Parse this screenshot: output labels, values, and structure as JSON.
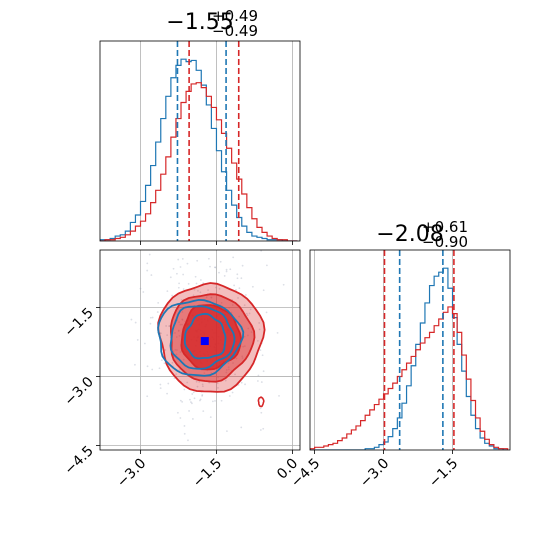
{
  "chart_data": {
    "type": "corner",
    "parameters": [
      {
        "title": {
          "main": "−1.55",
          "sup": "+0.49",
          "sub": "−0.49"
        },
        "range": [
          -3.8,
          0.15
        ],
        "ticks": [
          -3.0,
          -1.5,
          0.0
        ],
        "tick_labels": [
          "−3.0",
          "−1.5",
          "0.0"
        ]
      },
      {
        "title": {
          "main": "−2.08",
          "sup": "+0.61",
          "sub": "−0.90"
        },
        "range": [
          -4.6,
          -0.25
        ],
        "ticks": [
          -4.5,
          -3.0,
          -1.5
        ],
        "tick_labels": [
          "−4.5",
          "−3.0",
          "−1.5"
        ]
      }
    ],
    "series": [
      {
        "color": "#1f77b4",
        "hist_x1": {
          "bins": [
            -3.8,
            -3.7,
            -3.6,
            -3.5,
            -3.4,
            -3.3,
            -3.2,
            -3.1,
            -3.0,
            -2.9,
            -2.8,
            -2.7,
            -2.6,
            -2.5,
            -2.4,
            -2.3,
            -2.2,
            -2.1,
            -2.0,
            -1.9,
            -1.8,
            -1.7,
            -1.6,
            -1.5,
            -1.4,
            -1.3,
            -1.2,
            -1.1,
            -1.0,
            -0.9,
            -0.8,
            -0.7,
            -0.6,
            -0.5,
            -0.4,
            -0.3,
            -0.2,
            -0.1,
            0.0,
            0.1
          ],
          "counts": [
            1,
            1,
            2,
            4,
            5,
            8,
            15,
            21,
            32,
            45,
            61,
            80,
            99,
            117,
            132,
            142,
            147,
            145,
            146,
            138,
            126,
            110,
            91,
            73,
            56,
            41,
            29,
            19,
            12,
            7,
            4,
            3,
            2,
            1,
            1,
            1,
            0,
            0,
            0
          ]
        },
        "hist_x2": {
          "bins": [
            -4.6,
            -4.5,
            -4.4,
            -4.3,
            -4.2,
            -4.1,
            -4.0,
            -3.9,
            -3.8,
            -3.7,
            -3.6,
            -3.5,
            -3.4,
            -3.3,
            -3.2,
            -3.1,
            -3.0,
            -2.9,
            -2.8,
            -2.7,
            -2.6,
            -2.5,
            -2.4,
            -2.3,
            -2.2,
            -2.1,
            -2.0,
            -1.9,
            -1.8,
            -1.7,
            -1.6,
            -1.5,
            -1.4,
            -1.3,
            -1.2,
            -1.1,
            -1.0,
            -0.9,
            -0.8,
            -0.7,
            -0.6,
            -0.5,
            -0.4,
            -0.3
          ],
          "counts": [
            0,
            0,
            0,
            0,
            0,
            0,
            0,
            0,
            0,
            0,
            0,
            0,
            1,
            1,
            2,
            4,
            6,
            10,
            16,
            24,
            35,
            48,
            63,
            79,
            95,
            110,
            123,
            130,
            133,
            136,
            121,
            99,
            79,
            59,
            40,
            26,
            16,
            9,
            5,
            3,
            1,
            1,
            0
          ]
        },
        "quantile_lines_x1": [
          -2.27,
          -1.31
        ],
        "quantile_lines_x2": [
          -2.65,
          -1.71
        ],
        "contour_levels": 3
      },
      {
        "color": "#d62728",
        "hist_x1": {
          "bins": [
            -3.8,
            -3.7,
            -3.6,
            -3.5,
            -3.4,
            -3.3,
            -3.2,
            -3.1,
            -3.0,
            -2.9,
            -2.8,
            -2.7,
            -2.6,
            -2.5,
            -2.4,
            -2.3,
            -2.2,
            -2.1,
            -2.0,
            -1.9,
            -1.8,
            -1.7,
            -1.6,
            -1.5,
            -1.4,
            -1.3,
            -1.2,
            -1.1,
            -1.0,
            -0.9,
            -0.8,
            -0.7,
            -0.6,
            -0.5,
            -0.4,
            -0.3,
            -0.2,
            -0.1,
            0.0,
            0.1
          ],
          "counts": [
            0,
            1,
            1,
            2,
            3,
            5,
            8,
            12,
            16,
            22,
            31,
            41,
            54,
            68,
            84,
            99,
            112,
            121,
            127,
            128,
            124,
            117,
            108,
            98,
            87,
            75,
            63,
            50,
            38,
            27,
            18,
            11,
            7,
            4,
            2,
            1,
            1,
            0,
            0
          ]
        },
        "hist_x2": {
          "bins": [
            -4.6,
            -4.5,
            -4.4,
            -4.3,
            -4.2,
            -4.1,
            -4.0,
            -3.9,
            -3.8,
            -3.7,
            -3.6,
            -3.5,
            -3.4,
            -3.3,
            -3.2,
            -3.1,
            -3.0,
            -2.9,
            -2.8,
            -2.7,
            -2.6,
            -2.5,
            -2.4,
            -2.3,
            -2.2,
            -2.1,
            -2.0,
            -1.9,
            -1.8,
            -1.7,
            -1.6,
            -1.5,
            -1.4,
            -1.3,
            -1.2,
            -1.1,
            -1.0,
            -0.9,
            -0.8,
            -0.7,
            -0.6,
            -0.5,
            -0.4,
            -0.3
          ],
          "counts": [
            1,
            2,
            2,
            3,
            4,
            5,
            7,
            9,
            12,
            15,
            18,
            22,
            26,
            30,
            34,
            38,
            42,
            46,
            50,
            55,
            60,
            65,
            70,
            75,
            80,
            84,
            88,
            93,
            98,
            103,
            107,
            102,
            88,
            71,
            53,
            37,
            24,
            14,
            8,
            4,
            2,
            1,
            1
          ]
        },
        "quantile_lines_x1": [
          -2.04,
          -1.06
        ],
        "quantile_lines_x2": [
          -2.98,
          -1.47
        ],
        "contour_levels": 3
      }
    ],
    "markers": [
      {
        "color": "#0000ff",
        "x": -1.73,
        "y": -2.23
      }
    ],
    "grid": true
  }
}
